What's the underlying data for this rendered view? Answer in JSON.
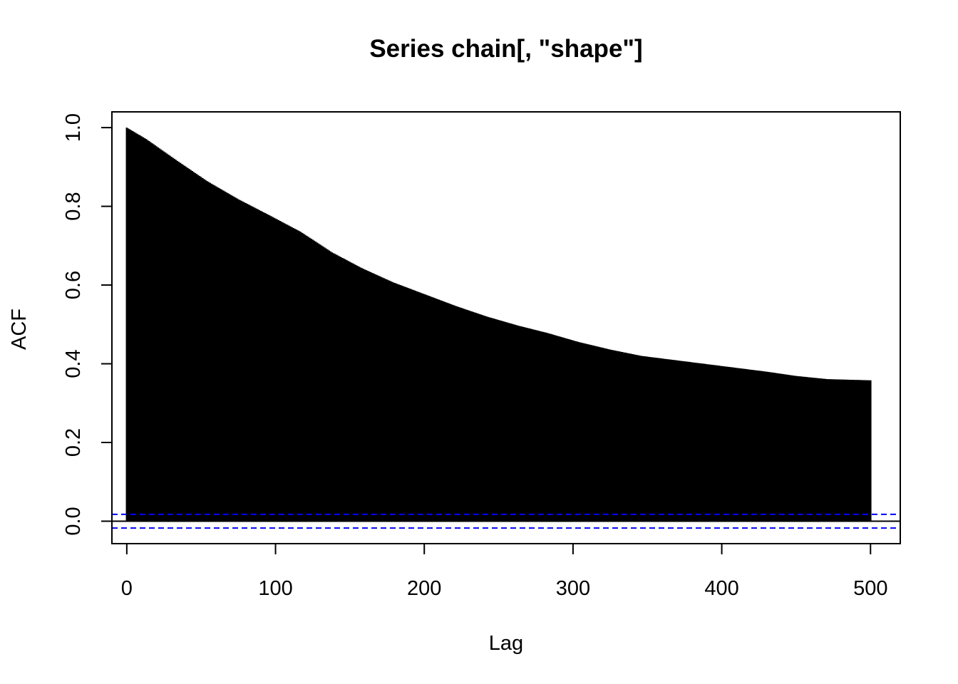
{
  "chart_data": {
    "type": "bar",
    "title": "Series  chain[, \"shape\"]",
    "xlabel": "Lag",
    "ylabel": "ACF",
    "xlim": [
      -10,
      520
    ],
    "ylim": [
      -0.057,
      1.04
    ],
    "x_ticks": [
      0,
      100,
      200,
      300,
      400,
      500
    ],
    "x_tick_labels": [
      "0",
      "100",
      "200",
      "300",
      "400",
      "500"
    ],
    "y_ticks": [
      0.0,
      0.2,
      0.4,
      0.6,
      0.8,
      1.0
    ],
    "y_tick_labels": [
      "0.0",
      "0.2",
      "0.4",
      "0.6",
      "0.8",
      "1.0"
    ],
    "lag_max": 500,
    "acf_curve": [
      {
        "lag": 0,
        "acf": 1.0
      },
      {
        "lag": 13,
        "acf": 0.971
      },
      {
        "lag": 33,
        "acf": 0.918
      },
      {
        "lag": 54,
        "acf": 0.864
      },
      {
        "lag": 75,
        "acf": 0.818
      },
      {
        "lag": 96,
        "acf": 0.777
      },
      {
        "lag": 117,
        "acf": 0.735
      },
      {
        "lag": 138,
        "acf": 0.683
      },
      {
        "lag": 158,
        "acf": 0.643
      },
      {
        "lag": 179,
        "acf": 0.607
      },
      {
        "lag": 200,
        "acf": 0.577
      },
      {
        "lag": 221,
        "acf": 0.547
      },
      {
        "lag": 242,
        "acf": 0.52
      },
      {
        "lag": 263,
        "acf": 0.497
      },
      {
        "lag": 283,
        "acf": 0.478
      },
      {
        "lag": 304,
        "acf": 0.455
      },
      {
        "lag": 325,
        "acf": 0.436
      },
      {
        "lag": 346,
        "acf": 0.42
      },
      {
        "lag": 367,
        "acf": 0.41
      },
      {
        "lag": 388,
        "acf": 0.4
      },
      {
        "lag": 409,
        "acf": 0.39
      },
      {
        "lag": 430,
        "acf": 0.38
      },
      {
        "lag": 450,
        "acf": 0.369
      },
      {
        "lag": 471,
        "acf": 0.361
      },
      {
        "lag": 490,
        "acf": 0.359
      },
      {
        "lag": 500,
        "acf": 0.358
      }
    ],
    "confidence_bound": 0.0175,
    "confidence_line_color": "#0000ff",
    "bar_color": "#000000",
    "grid": false,
    "legend": "none"
  }
}
